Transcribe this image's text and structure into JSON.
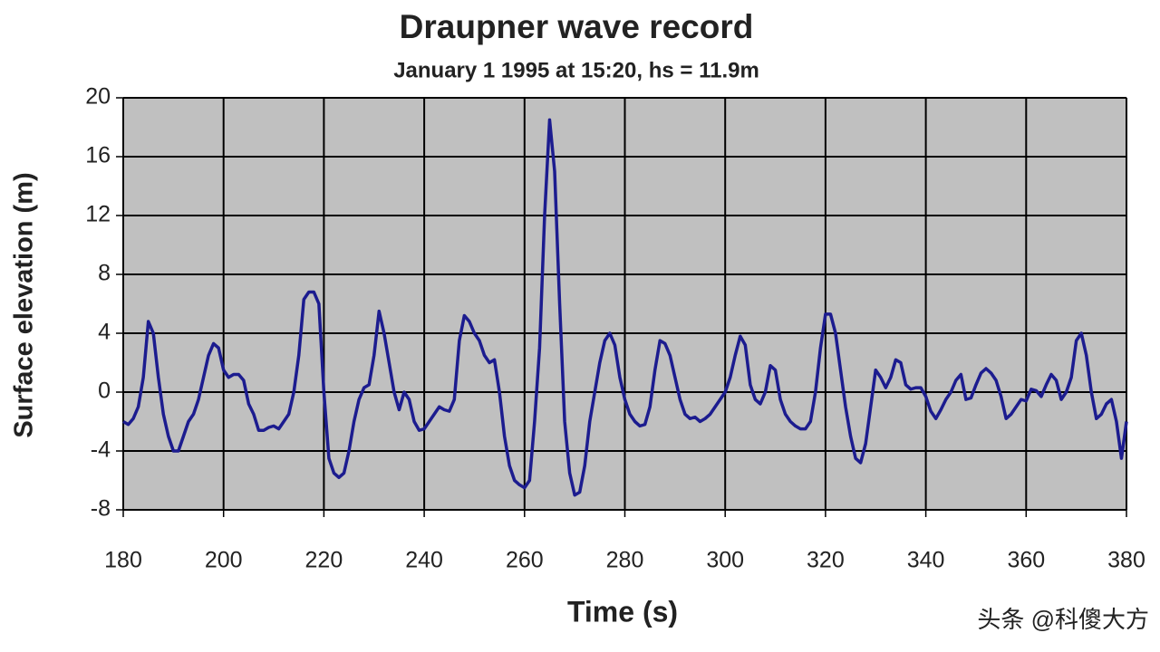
{
  "chart_data": {
    "type": "line",
    "title": "Draupner wave record",
    "subtitle": "January 1 1995 at 15:20, hs = 11.9m",
    "xlabel": "Time (s)",
    "ylabel": "Surface elevation  (m)",
    "watermark": "头条 @科傻大方",
    "color": "#1c1c8f",
    "grid": true,
    "xlim": [
      180,
      380
    ],
    "ylim": [
      -8,
      20
    ],
    "xticks": [
      180,
      200,
      220,
      240,
      260,
      280,
      300,
      320,
      340,
      360,
      380
    ],
    "yticks": [
      -8,
      -4,
      0,
      4,
      8,
      12,
      16,
      20
    ],
    "x": [
      180,
      181,
      182,
      183,
      184,
      185,
      186,
      187,
      188,
      189,
      190,
      191,
      192,
      193,
      194,
      195,
      196,
      197,
      198,
      199,
      200,
      201,
      202,
      203,
      204,
      205,
      206,
      207,
      208,
      209,
      210,
      211,
      212,
      213,
      214,
      215,
      216,
      217,
      218,
      219,
      220,
      221,
      222,
      223,
      224,
      225,
      226,
      227,
      228,
      229,
      230,
      231,
      232,
      233,
      234,
      235,
      236,
      237,
      238,
      239,
      240,
      241,
      242,
      243,
      244,
      245,
      246,
      247,
      248,
      249,
      250,
      251,
      252,
      253,
      254,
      255,
      256,
      257,
      258,
      259,
      260,
      261,
      262,
      263,
      264,
      265,
      266,
      267,
      268,
      269,
      270,
      271,
      272,
      273,
      274,
      275,
      276,
      277,
      278,
      279,
      280,
      281,
      282,
      283,
      284,
      285,
      286,
      287,
      288,
      289,
      290,
      291,
      292,
      293,
      294,
      295,
      296,
      297,
      298,
      299,
      300,
      301,
      302,
      303,
      304,
      305,
      306,
      307,
      308,
      309,
      310,
      311,
      312,
      313,
      314,
      315,
      316,
      317,
      318,
      319,
      320,
      321,
      322,
      323,
      324,
      325,
      326,
      327,
      328,
      329,
      330,
      331,
      332,
      333,
      334,
      335,
      336,
      337,
      338,
      339,
      340,
      341,
      342,
      343,
      344,
      345,
      346,
      347,
      348,
      349,
      350,
      351,
      352,
      353,
      354,
      355,
      356,
      357,
      358,
      359,
      360,
      361,
      362,
      363,
      364,
      365,
      366,
      367,
      368,
      369,
      370,
      371,
      372,
      373,
      374,
      375,
      376,
      377,
      378,
      379,
      380
    ],
    "values": [
      -2,
      -2.2,
      -1.8,
      -1,
      1,
      4.8,
      4,
      1,
      -1.5,
      -3,
      -4,
      -4,
      -3,
      -2,
      -1.5,
      -0.5,
      1,
      2.5,
      3.3,
      3,
      1.5,
      1,
      1.2,
      1.2,
      0.8,
      -0.8,
      -1.5,
      -2.6,
      -2.6,
      -2.4,
      -2.3,
      -2.5,
      -2,
      -1.5,
      0,
      2.5,
      6.3,
      6.8,
      6.8,
      6,
      0,
      -4.5,
      -5.5,
      -5.8,
      -5.5,
      -4,
      -2,
      -0.5,
      0.3,
      0.5,
      2.5,
      5.5,
      4,
      2,
      0,
      -1.2,
      0,
      -0.5,
      -2,
      -2.6,
      -2.5,
      -2,
      -1.5,
      -1,
      -1.2,
      -1.3,
      -0.5,
      3.5,
      5.2,
      4.8,
      4,
      3.5,
      2.5,
      2,
      2.2,
      0,
      -3,
      -5,
      -6,
      -6.3,
      -6.5,
      -6,
      -2,
      3,
      12,
      18.5,
      15,
      6,
      -2,
      -5.5,
      -7,
      -6.8,
      -5,
      -2,
      0,
      2,
      3.5,
      4,
      3.2,
      1,
      -0.5,
      -1.5,
      -2,
      -2.3,
      -2.2,
      -1,
      1.5,
      3.5,
      3.3,
      2.5,
      1,
      -0.5,
      -1.5,
      -1.8,
      -1.7,
      -2,
      -1.8,
      -1.5,
      -1,
      -0.5,
      0,
      1,
      2.5,
      3.8,
      3.2,
      0.5,
      -0.5,
      -0.8,
      0,
      1.8,
      1.5,
      -0.5,
      -1.5,
      -2,
      -2.3,
      -2.5,
      -2.5,
      -2,
      0,
      3,
      5.3,
      5.3,
      4,
      1.5,
      -1,
      -3,
      -4.5,
      -4.8,
      -3.5,
      -1,
      1.5,
      1,
      0.3,
      1,
      2.2,
      2,
      0.5,
      0.2,
      0.3,
      0.3,
      -0.3,
      -1.3,
      -1.8,
      -1.2,
      -0.5,
      0,
      0.8,
      1.2,
      -0.5,
      -0.4,
      0.5,
      1.3,
      1.6,
      1.3,
      0.8,
      -0.3,
      -1.8,
      -1.5,
      -1,
      -0.5,
      -0.6,
      0.2,
      0.1,
      -0.3,
      0.5,
      1.2,
      0.8,
      -0.5,
      0,
      1,
      3.5,
      4,
      2.5,
      0,
      -1.8,
      -1.5,
      -0.8,
      -0.5,
      -2,
      -4.5,
      -2
    ]
  }
}
